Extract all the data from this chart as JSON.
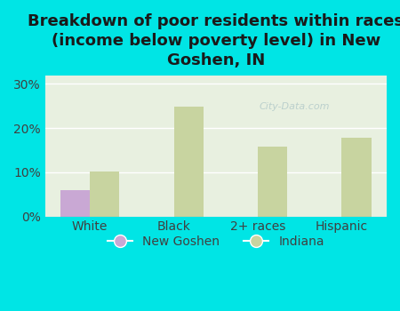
{
  "title": "Breakdown of poor residents within races\n(income below poverty level) in New\nGoshen, IN",
  "categories": [
    "White",
    "Black",
    "2+ races",
    "Hispanic"
  ],
  "new_goshen_values": [
    6.0,
    0,
    0,
    0
  ],
  "indiana_values": [
    10.2,
    24.8,
    15.8,
    17.8
  ],
  "new_goshen_color": "#c9a8d4",
  "indiana_color": "#c8d4a0",
  "background_color": "#00e5e5",
  "plot_bg_color": "#e8f0e0",
  "yticks": [
    0,
    10,
    20,
    30
  ],
  "ylim": [
    0,
    32
  ],
  "bar_width": 0.35,
  "title_fontsize": 13,
  "tick_fontsize": 10,
  "legend_fontsize": 10,
  "watermark": "City-Data.com",
  "watermark_color": "#b0c8c8"
}
